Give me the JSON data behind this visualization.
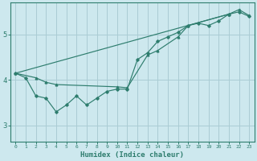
{
  "xlabel": "Humidex (Indice chaleur)",
  "ylabel": "",
  "bg_color": "#cde8ee",
  "grid_color": "#aaccd4",
  "line_color": "#2e7d6e",
  "xlim": [
    -0.5,
    23.5
  ],
  "ylim": [
    2.65,
    5.7
  ],
  "yticks": [
    3,
    4,
    5
  ],
  "xticks": [
    0,
    1,
    2,
    3,
    4,
    5,
    6,
    7,
    8,
    9,
    10,
    11,
    12,
    13,
    14,
    15,
    16,
    17,
    18,
    19,
    20,
    21,
    22,
    23
  ],
  "line1_x": [
    0,
    1,
    2,
    3,
    4,
    5,
    6,
    7,
    8,
    9,
    10,
    11,
    12,
    13,
    14,
    15,
    16,
    17,
    18,
    19,
    20,
    21,
    22,
    23
  ],
  "line1_y": [
    4.15,
    4.05,
    3.65,
    3.6,
    3.3,
    3.45,
    3.65,
    3.45,
    3.6,
    3.75,
    3.8,
    3.8,
    4.45,
    4.6,
    4.85,
    4.95,
    5.05,
    5.2,
    5.25,
    5.2,
    5.3,
    5.45,
    5.5,
    5.4
  ],
  "line2_x": [
    0,
    2,
    3,
    4,
    10,
    11,
    13,
    14,
    16,
    17,
    21,
    22,
    23
  ],
  "line2_y": [
    4.15,
    4.05,
    3.95,
    3.9,
    3.85,
    3.83,
    4.55,
    4.65,
    4.95,
    5.2,
    5.45,
    5.55,
    5.42
  ],
  "line3_x": [
    0,
    21
  ],
  "line3_y": [
    4.15,
    5.45
  ]
}
